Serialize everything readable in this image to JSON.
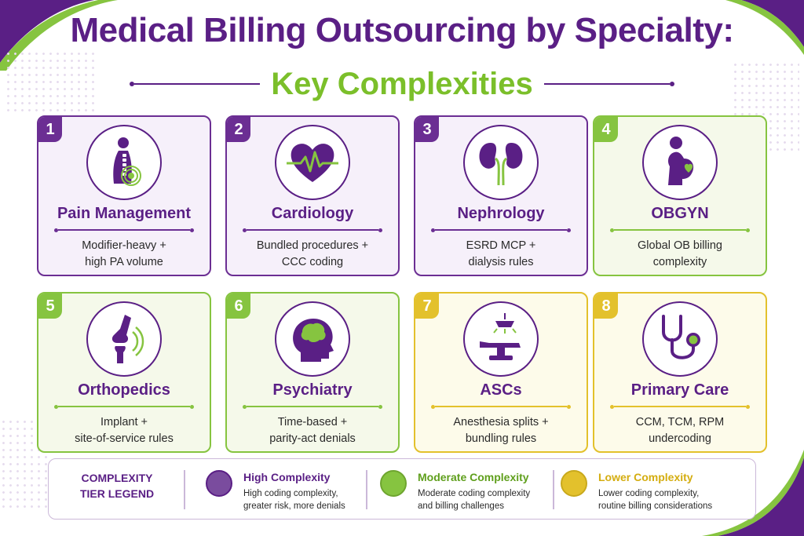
{
  "header": {
    "title": "Medical Billing Outsourcing by Specialty:",
    "subtitle": "Key Complexities"
  },
  "colors": {
    "purple": "#6b2e93",
    "green": "#86c440",
    "yellow": "#e3c12c",
    "title": "#5a1f85"
  },
  "cards": [
    {
      "number": "1",
      "title": "Pain Management",
      "desc1": "Modifier-heavy +",
      "desc2": "high PA volume",
      "tier": "high",
      "icon": "spine-icon"
    },
    {
      "number": "2",
      "title": "Cardiology",
      "desc1": "Bundled procedures +",
      "desc2": "CCC coding",
      "tier": "high",
      "icon": "heart-icon"
    },
    {
      "number": "3",
      "title": "Nephrology",
      "desc1": "ESRD MCP +",
      "desc2": "dialysis rules",
      "tier": "high",
      "icon": "kidneys-icon"
    },
    {
      "number": "4",
      "title": "OBGYN",
      "desc1": "Global OB billing",
      "desc2": "complexity",
      "tier": "moderate",
      "icon": "pregnant-woman-icon"
    },
    {
      "number": "5",
      "title": "Orthopedics",
      "desc1": "Implant +",
      "desc2": "site-of-service rules",
      "tier": "moderate",
      "icon": "knee-joint-icon"
    },
    {
      "number": "6",
      "title": "Psychiatry",
      "desc1": "Time-based +",
      "desc2": "parity-act denials",
      "tier": "moderate",
      "icon": "brain-head-icon"
    },
    {
      "number": "7",
      "title": "ASCs",
      "desc1": "Anesthesia splits +",
      "desc2": "bundling rules",
      "tier": "lower",
      "icon": "surgical-table-icon"
    },
    {
      "number": "8",
      "title": "Primary Care",
      "desc1": "CCM, TCM, RPM",
      "desc2": "undercoding",
      "tier": "lower",
      "icon": "stethoscope-icon"
    }
  ],
  "legend": {
    "label1": "COMPLEXITY",
    "label2": "TIER LEGEND",
    "items": [
      {
        "name": "High Complexity",
        "desc1": "High coding complexity,",
        "desc2": "greater risk, more denials",
        "color": "#7a4c9e"
      },
      {
        "name": "Moderate Complexity",
        "desc1": "Moderate coding complexity",
        "desc2": "and billing challenges",
        "color": "#86c440"
      },
      {
        "name": "Lower Complexity",
        "desc1": "Lower coding complexity,",
        "desc2": "routine billing considerations",
        "color": "#e3c12c"
      }
    ]
  }
}
